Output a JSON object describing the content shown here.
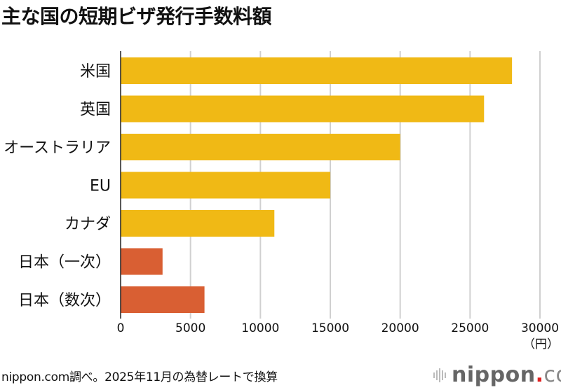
{
  "title": "主な国の短期ビザ発行手数料額",
  "footer": "nippon.com調べ。2025年11月の為替レートで換算",
  "logo": {
    "name": "nippon",
    "dot": ".",
    "tld": "com"
  },
  "colors": {
    "primary": "#F0B915",
    "highlight": "#D95F33",
    "grid": "#d0d0d0",
    "axis": "#222222"
  },
  "chart_data": {
    "type": "bar",
    "orientation": "horizontal",
    "title": "主な国の短期ビザ発行手数料額",
    "categories": [
      "米国",
      "英国",
      "オーストラリア",
      "EU",
      "カナダ",
      "日本（一次）",
      "日本（数次）"
    ],
    "values": [
      28000,
      26000,
      20000,
      15000,
      11000,
      3000,
      6000
    ],
    "bar_colors": [
      "#F0B915",
      "#F0B915",
      "#F0B915",
      "#F0B915",
      "#F0B915",
      "#D95F33",
      "#D95F33"
    ],
    "xlabel": "（円）",
    "ylabel": "",
    "xlim": [
      0,
      30000
    ],
    "xticks": [
      0,
      5000,
      10000,
      15000,
      20000,
      25000,
      30000
    ],
    "grid": true,
    "legend": "none"
  }
}
